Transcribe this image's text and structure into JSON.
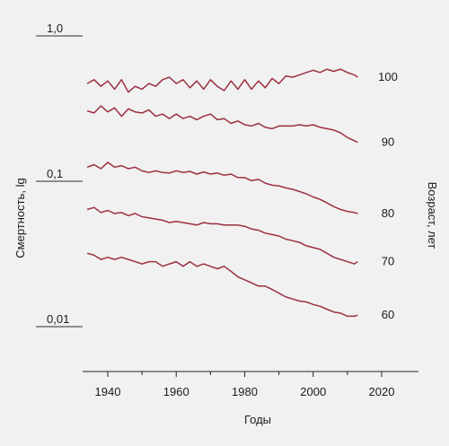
{
  "chart_data": {
    "type": "line",
    "xlabel": "Годы",
    "ylabel": "Смертность, lg",
    "ylabel_right": "Возраст, лет",
    "xlim": [
      1933,
      2025
    ],
    "x_ticks": [
      "1940",
      "1960",
      "1980",
      "2000",
      "2020"
    ],
    "y_scale": "log",
    "y_ticks": [
      "1,0",
      "0,1",
      "0,01"
    ],
    "line_color": "#9b3040",
    "grid": false,
    "series": [
      {
        "name": "100",
        "x": [
          1934,
          1936,
          1938,
          1940,
          1942,
          1944,
          1946,
          1948,
          1950,
          1952,
          1954,
          1956,
          1958,
          1960,
          1962,
          1964,
          1966,
          1968,
          1970,
          1972,
          1974,
          1976,
          1978,
          1980,
          1982,
          1984,
          1986,
          1988,
          1990,
          1992,
          1994,
          1996,
          1998,
          2000,
          2002,
          2004,
          2006,
          2008,
          2010,
          2012,
          2013
        ],
        "y": [
          0.47,
          0.5,
          0.45,
          0.49,
          0.43,
          0.5,
          0.41,
          0.45,
          0.43,
          0.47,
          0.45,
          0.5,
          0.52,
          0.47,
          0.5,
          0.44,
          0.49,
          0.43,
          0.5,
          0.45,
          0.42,
          0.49,
          0.43,
          0.5,
          0.43,
          0.49,
          0.44,
          0.51,
          0.47,
          0.53,
          0.52,
          0.54,
          0.56,
          0.58,
          0.56,
          0.59,
          0.57,
          0.59,
          0.56,
          0.54,
          0.52
        ]
      },
      {
        "name": "90",
        "x": [
          1934,
          1936,
          1938,
          1940,
          1942,
          1944,
          1946,
          1948,
          1950,
          1952,
          1954,
          1956,
          1958,
          1960,
          1962,
          1964,
          1966,
          1968,
          1970,
          1972,
          1974,
          1976,
          1978,
          1980,
          1982,
          1984,
          1986,
          1988,
          1990,
          1992,
          1994,
          1996,
          1998,
          2000,
          2002,
          2004,
          2006,
          2008,
          2010,
          2012,
          2013
        ],
        "y": [
          0.305,
          0.295,
          0.33,
          0.3,
          0.32,
          0.28,
          0.315,
          0.3,
          0.295,
          0.31,
          0.28,
          0.29,
          0.27,
          0.29,
          0.27,
          0.28,
          0.265,
          0.28,
          0.29,
          0.265,
          0.27,
          0.25,
          0.26,
          0.245,
          0.24,
          0.25,
          0.235,
          0.23,
          0.24,
          0.24,
          0.24,
          0.245,
          0.24,
          0.245,
          0.235,
          0.23,
          0.225,
          0.215,
          0.2,
          0.19,
          0.185
        ]
      },
      {
        "name": "80",
        "x": [
          1934,
          1936,
          1938,
          1940,
          1942,
          1944,
          1946,
          1948,
          1950,
          1952,
          1954,
          1956,
          1958,
          1960,
          1962,
          1964,
          1966,
          1968,
          1970,
          1972,
          1974,
          1976,
          1978,
          1980,
          1982,
          1984,
          1986,
          1988,
          1990,
          1992,
          1994,
          1996,
          1998,
          2000,
          2002,
          2004,
          2006,
          2008,
          2010,
          2012,
          2013
        ],
        "y": [
          0.125,
          0.13,
          0.122,
          0.135,
          0.125,
          0.128,
          0.122,
          0.125,
          0.118,
          0.115,
          0.118,
          0.115,
          0.114,
          0.118,
          0.115,
          0.117,
          0.112,
          0.116,
          0.112,
          0.114,
          0.11,
          0.112,
          0.106,
          0.106,
          0.101,
          0.103,
          0.097,
          0.094,
          0.093,
          0.09,
          0.088,
          0.085,
          0.082,
          0.078,
          0.075,
          0.071,
          0.067,
          0.064,
          0.062,
          0.061,
          0.06
        ]
      },
      {
        "name": "70",
        "x": [
          1934,
          1936,
          1938,
          1940,
          1942,
          1944,
          1946,
          1948,
          1950,
          1952,
          1954,
          1956,
          1958,
          1960,
          1962,
          1964,
          1966,
          1968,
          1970,
          1972,
          1974,
          1976,
          1978,
          1980,
          1982,
          1984,
          1986,
          1988,
          1990,
          1992,
          1994,
          1996,
          1998,
          2000,
          2002,
          2004,
          2006,
          2008,
          2010,
          2012,
          2013
        ],
        "y": [
          0.064,
          0.066,
          0.061,
          0.063,
          0.06,
          0.061,
          0.058,
          0.06,
          0.057,
          0.056,
          0.055,
          0.054,
          0.052,
          0.053,
          0.052,
          0.051,
          0.05,
          0.052,
          0.051,
          0.051,
          0.05,
          0.05,
          0.05,
          0.049,
          0.047,
          0.046,
          0.044,
          0.043,
          0.042,
          0.04,
          0.039,
          0.038,
          0.036,
          0.035,
          0.034,
          0.032,
          0.03,
          0.029,
          0.028,
          0.027,
          0.028
        ]
      },
      {
        "name": "60",
        "x": [
          1934,
          1936,
          1938,
          1940,
          1942,
          1944,
          1946,
          1948,
          1950,
          1952,
          1954,
          1956,
          1958,
          1960,
          1962,
          1964,
          1966,
          1968,
          1970,
          1972,
          1974,
          1976,
          1978,
          1980,
          1982,
          1984,
          1986,
          1988,
          1990,
          1992,
          1994,
          1996,
          1998,
          2000,
          2002,
          2004,
          2006,
          2008,
          2010,
          2012,
          2013
        ],
        "y": [
          0.032,
          0.031,
          0.029,
          0.03,
          0.029,
          0.03,
          0.029,
          0.028,
          0.027,
          0.028,
          0.028,
          0.026,
          0.027,
          0.028,
          0.026,
          0.028,
          0.026,
          0.027,
          0.026,
          0.025,
          0.026,
          0.024,
          0.022,
          0.021,
          0.02,
          0.019,
          0.019,
          0.018,
          0.017,
          0.016,
          0.0155,
          0.015,
          0.0148,
          0.0142,
          0.0138,
          0.0132,
          0.0126,
          0.0124,
          0.0118,
          0.0118,
          0.012
        ]
      }
    ]
  }
}
